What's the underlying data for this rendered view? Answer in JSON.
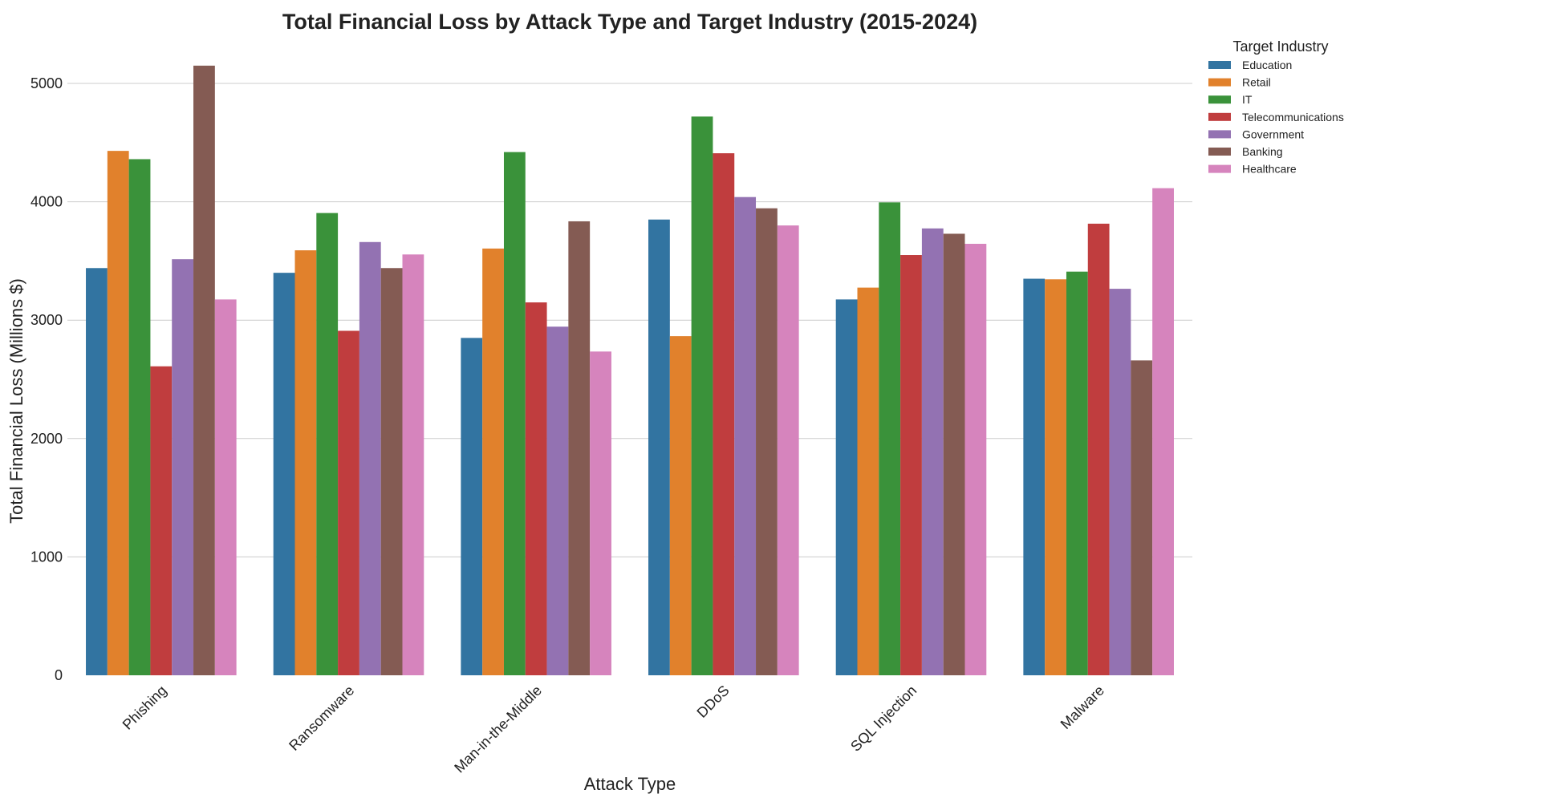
{
  "chart_data": {
    "type": "bar",
    "title": "Total Financial Loss by Attack Type and Target Industry (2015-2024)",
    "xlabel": "Attack Type",
    "ylabel": "Total Financial Loss (Millions $)",
    "ylim": [
      0,
      5250
    ],
    "yticks": [
      "0",
      "1000",
      "2000",
      "3000",
      "4000",
      "5000"
    ],
    "grid": "horizontal",
    "legend_title": "Target Industry",
    "legend_position": "right",
    "categories": [
      "Phishing",
      "Ransomware",
      "Man-in-the-Middle",
      "DDoS",
      "SQL Injection",
      "Malware"
    ],
    "series": [
      {
        "name": "Education",
        "color": "#3274a1",
        "values": [
          3440,
          3400,
          2850,
          3850,
          3175,
          3350
        ]
      },
      {
        "name": "Retail",
        "color": "#e1812c",
        "values": [
          4430,
          3590,
          3605,
          2865,
          3275,
          3345
        ]
      },
      {
        "name": "IT",
        "color": "#3a923a",
        "values": [
          4360,
          3905,
          4420,
          4720,
          3995,
          3410
        ]
      },
      {
        "name": "Telecommunications",
        "color": "#c03d3e",
        "values": [
          2610,
          2910,
          3150,
          4410,
          3550,
          3815
        ]
      },
      {
        "name": "Government",
        "color": "#9372b2",
        "values": [
          3515,
          3660,
          2945,
          4040,
          3775,
          3265
        ]
      },
      {
        "name": "Banking",
        "color": "#845b53",
        "values": [
          5150,
          3440,
          3835,
          3945,
          3730,
          2660
        ]
      },
      {
        "name": "Healthcare",
        "color": "#d684bd",
        "values": [
          3175,
          3555,
          2735,
          3800,
          3645,
          4115
        ]
      }
    ]
  }
}
